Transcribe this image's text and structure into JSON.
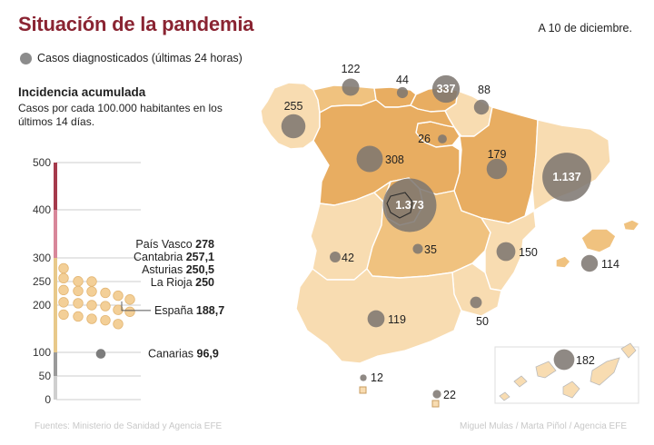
{
  "header": {
    "title": "Situación de la pandemia",
    "date": "A 10 de diciembre."
  },
  "legend": {
    "label": "Casos diagnosticados (últimas 24 horas)"
  },
  "incidence": {
    "title": "Incidencia acumulada",
    "subtitle": "Casos por cada 100.000 habitantes en los últimos 14 días.",
    "axis_ticks": [
      0,
      50,
      100,
      200,
      250,
      300,
      400,
      500
    ],
    "bands": [
      {
        "from": 0,
        "to": 50,
        "color": "#cfcfcf"
      },
      {
        "from": 50,
        "to": 100,
        "color": "#9a9a9a"
      },
      {
        "from": 100,
        "to": 300,
        "color": "#e8c98a"
      },
      {
        "from": 300,
        "to": 400,
        "color": "#d8879a"
      },
      {
        "from": 400,
        "to": 500,
        "color": "#a53a4c"
      }
    ],
    "highlights": [
      {
        "name": "País Vasco",
        "value": "278"
      },
      {
        "name": "Cantabria",
        "value": "257,1"
      },
      {
        "name": "Asturias",
        "value": "250,5"
      },
      {
        "name": "La Rioja",
        "value": "250"
      }
    ],
    "spain": {
      "name": "España",
      "value": "188,7",
      "numeric": 188.7
    },
    "canarias": {
      "name": "Canarias",
      "value": "96,9",
      "numeric": 96.9
    },
    "dot_cluster_values": [
      278,
      257.1,
      250.5,
      250,
      232,
      230,
      229,
      226,
      220,
      212,
      206,
      204,
      200,
      198,
      190,
      186,
      180,
      176,
      171,
      168,
      160
    ]
  },
  "map": {
    "colors": {
      "light": "#f8dcb1",
      "medium": "#f0c27f",
      "dark": "#e8ad61",
      "bubble": "#7d7670",
      "outline": "#ffffff"
    },
    "bubbles": [
      {
        "label": "122",
        "value": 122
      },
      {
        "label": "44",
        "value": 44
      },
      {
        "label": "337",
        "value": 337
      },
      {
        "label": "88",
        "value": 88
      },
      {
        "label": "255",
        "value": 255
      },
      {
        "label": "26",
        "value": 26
      },
      {
        "label": "308",
        "value": 308
      },
      {
        "label": "179",
        "value": 179
      },
      {
        "label": "1.137",
        "value": 1137
      },
      {
        "label": "1.373",
        "value": 1373
      },
      {
        "label": "42",
        "value": 42
      },
      {
        "label": "35",
        "value": 35
      },
      {
        "label": "150",
        "value": 150
      },
      {
        "label": "114",
        "value": 114
      },
      {
        "label": "50",
        "value": 50
      },
      {
        "label": "119",
        "value": 119
      },
      {
        "label": "182",
        "value": 182
      },
      {
        "label": "12",
        "value": 12
      },
      {
        "label": "22",
        "value": 22
      }
    ]
  },
  "footer": {
    "sources": "Fuentes: Ministerio de Sanidad y Agencia EFE",
    "credit": "Miguel Mulas / Marta Piñol / Agencia EFE"
  }
}
